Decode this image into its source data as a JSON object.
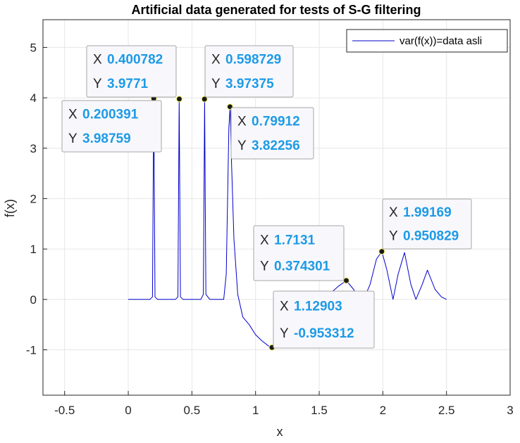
{
  "chart_data": {
    "type": "line",
    "title": "Artificial data generated for tests of S-G filtering",
    "xlabel": "x",
    "ylabel": "f(x)",
    "xlim": [
      -0.67,
      3.0
    ],
    "ylim": [
      -1.9,
      5.55
    ],
    "xticks": [
      -0.5,
      0,
      0.5,
      1,
      1.5,
      2,
      2.5,
      3
    ],
    "xtick_labels": [
      "-0.5",
      "0",
      "0.5",
      "1",
      "1.5",
      "2",
      "2.5",
      "3"
    ],
    "yticks": [
      -1,
      0,
      1,
      2,
      3,
      4,
      5
    ],
    "ytick_labels": [
      "-1",
      "0",
      "1",
      "2",
      "3",
      "4",
      "5"
    ],
    "grid": true,
    "legend_location": "top-right",
    "series": [
      {
        "name": "var(f(x))=data asli",
        "color": "#0000cc",
        "x": [
          0,
          0.17,
          0.19,
          0.2,
          0.21,
          0.23,
          0.37,
          0.39,
          0.4,
          0.41,
          0.43,
          0.57,
          0.59,
          0.6,
          0.61,
          0.64,
          0.75,
          0.77,
          0.79,
          0.8,
          0.81,
          0.83,
          0.86,
          0.9,
          0.95,
          1.0,
          1.05,
          1.1,
          1.129,
          1.15,
          1.2,
          1.25,
          1.3,
          1.35,
          1.4,
          1.45,
          1.5,
          1.55,
          1.6,
          1.65,
          1.713,
          1.77,
          1.81,
          1.85,
          1.9,
          1.95,
          1.992,
          2.03,
          2.08,
          2.12,
          2.17,
          2.22,
          2.26,
          2.31,
          2.35,
          2.41,
          2.46,
          2.5
        ],
        "y": [
          0,
          0,
          0.05,
          3.98759,
          0.05,
          0,
          0,
          0.05,
          3.9771,
          0.05,
          0,
          0,
          0.1,
          3.97375,
          0.1,
          0,
          0,
          0.5,
          3.4,
          3.82256,
          2.8,
          1.2,
          0.1,
          -0.35,
          -0.5,
          -0.7,
          -0.82,
          -0.92,
          -0.953312,
          -0.86,
          -0.62,
          -0.37,
          -0.15,
          -0.06,
          -0.03,
          -0.01,
          0.01,
          0.05,
          0.15,
          0.26,
          0.374301,
          0.2,
          0.0,
          0.0,
          0.3,
          0.8,
          0.950829,
          0.6,
          0.0,
          0.5,
          0.93,
          0.3,
          0.0,
          0.3,
          0.58,
          0.2,
          0.05,
          0.0
        ]
      }
    ],
    "datatips": [
      {
        "x_label": "X",
        "x": "0.200391",
        "y_label": "Y",
        "y": "3.98759",
        "px": 0.200391,
        "py": 3.98759
      },
      {
        "x_label": "X",
        "x": "0.400782",
        "y_label": "Y",
        "y": "3.9771",
        "px": 0.400782,
        "py": 3.9771
      },
      {
        "x_label": "X",
        "x": "0.598729",
        "y_label": "Y",
        "y": "3.97375",
        "px": 0.598729,
        "py": 3.97375
      },
      {
        "x_label": "X",
        "x": "0.79912",
        "y_label": "Y",
        "y": "3.82256",
        "px": 0.79912,
        "py": 3.82256
      },
      {
        "x_label": "X",
        "x": "1.12903",
        "y_label": "Y",
        "y": "-0.953312",
        "px": 1.12903,
        "py": -0.953312
      },
      {
        "x_label": "X",
        "x": "1.7131",
        "y_label": "Y",
        "y": "0.374301",
        "px": 1.7131,
        "py": 0.374301
      },
      {
        "x_label": "X",
        "x": "1.99169",
        "y_label": "Y",
        "y": "0.950829",
        "px": 1.99169,
        "py": 0.950829
      }
    ]
  }
}
